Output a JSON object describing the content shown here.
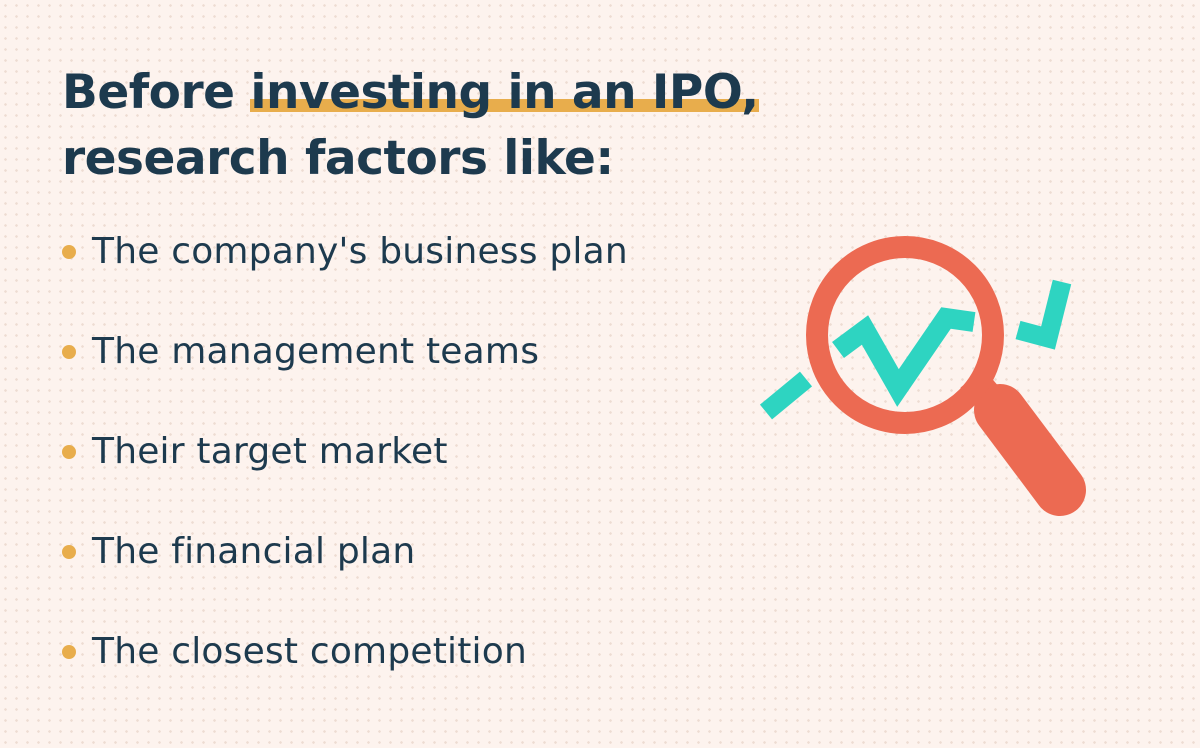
{
  "heading": {
    "prefix": "Before ",
    "highlight": "investing in an IPO,",
    "line2": "research factors like:"
  },
  "factors": [
    "The company's business plan",
    "The management teams",
    "Their target market",
    "The financial plan",
    "The closest competition"
  ],
  "colors": {
    "background": "#fdf3ee",
    "text": "#1d3a4e",
    "accent": "#e8ad4c",
    "magnifier": "#ec6a52",
    "trend_line": "#2ed4c1"
  },
  "illustration": {
    "icon": "magnifying-glass-trend-icon"
  }
}
